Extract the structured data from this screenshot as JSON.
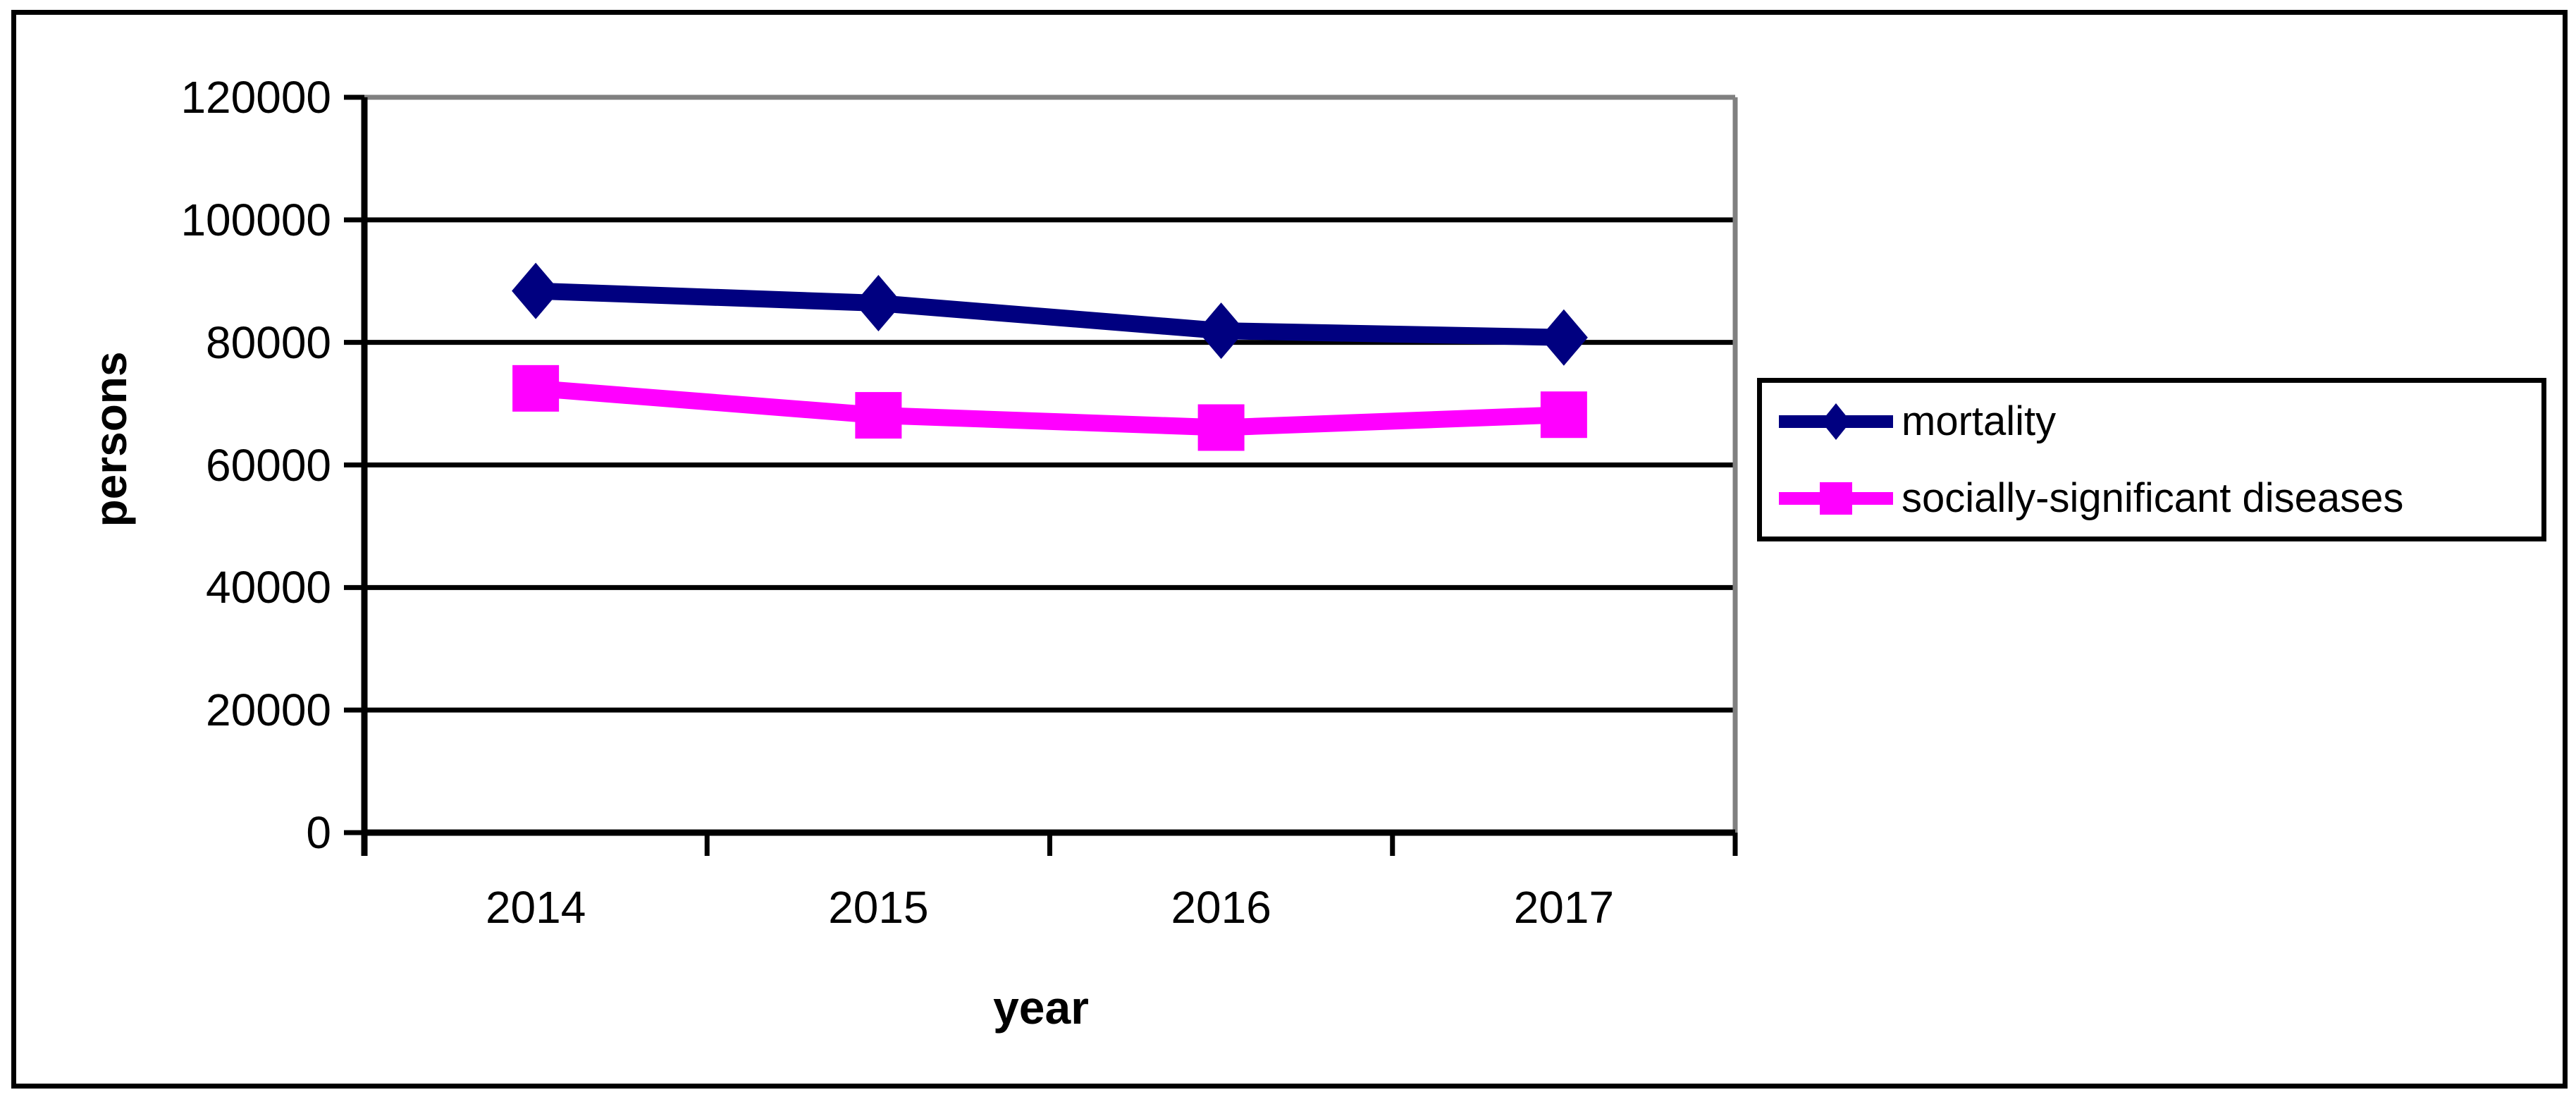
{
  "chart_data": {
    "type": "line",
    "title": "",
    "xlabel": "year",
    "ylabel": "persons",
    "categories": [
      "2014",
      "2015",
      "2016",
      "2017"
    ],
    "series": [
      {
        "name": "mortality",
        "color": "#000080",
        "marker": "diamond",
        "values": [
          88400,
          86400,
          81900,
          80800
        ]
      },
      {
        "name": "socially-significant diseases",
        "color": "#FF00FF",
        "marker": "square",
        "values": [
          72500,
          68100,
          66100,
          68200
        ]
      }
    ],
    "ylim": [
      0,
      120000
    ],
    "yticks": [
      0,
      20000,
      40000,
      60000,
      80000,
      100000,
      120000
    ],
    "grid": "horizontal-black-gridlines",
    "plot_border_color": "#808080",
    "gridline_color": "#000000",
    "axis_color": "#000000",
    "frame_color": "#000000",
    "background_color": "#ffffff",
    "legend_position": "right"
  }
}
